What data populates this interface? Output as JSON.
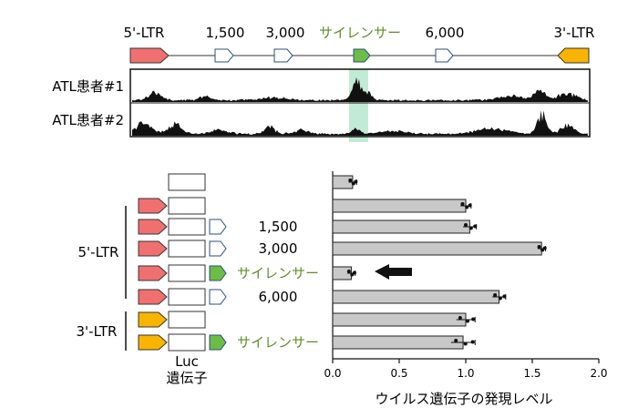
{
  "colors": {
    "ltr5": "#f07070",
    "ltr3": "#f8b400",
    "silencer": "#6cbd45",
    "silencer_text": "#5f8f2a",
    "highlight": "#b7e8cf",
    "bar": "#c8c8c8",
    "track": "#111111"
  },
  "genome_map": {
    "labels": [
      "5'-LTR",
      "1,500",
      "3,000",
      "サイレンサー",
      "6,000",
      "3'-LTR"
    ]
  },
  "tracks": [
    {
      "label": "ATL患者#1"
    },
    {
      "label": "ATL患者#2"
    }
  ],
  "constructs": {
    "group_5ltr": "5'-LTR",
    "group_3ltr": "3'-LTR",
    "rows": [
      {
        "promoter": "none",
        "fragment": "none",
        "label": ""
      },
      {
        "promoter": "5ltr",
        "fragment": "none",
        "label": ""
      },
      {
        "promoter": "5ltr",
        "fragment": "white",
        "label": "1,500"
      },
      {
        "promoter": "5ltr",
        "fragment": "white",
        "label": "3,000"
      },
      {
        "promoter": "5ltr",
        "fragment": "silencer",
        "label": "サイレンサー"
      },
      {
        "promoter": "5ltr",
        "fragment": "white",
        "label": "6,000"
      },
      {
        "promoter": "3ltr",
        "fragment": "none",
        "label": ""
      },
      {
        "promoter": "3ltr",
        "fragment": "silencer",
        "label": "サイレンサー"
      }
    ],
    "luc_label_1": "Luc",
    "luc_label_2": "遺伝子"
  },
  "chart_data": {
    "type": "bar",
    "orientation": "horizontal",
    "values": [
      0.15,
      1.0,
      1.03,
      1.57,
      0.14,
      1.25,
      1.0,
      0.98
    ],
    "errors": [
      0.03,
      0.04,
      0.05,
      0.03,
      0.03,
      0.05,
      0.07,
      0.09
    ],
    "xlim": [
      0.0,
      2.0
    ],
    "xticks": [
      "0.0",
      "0.5",
      "1.0",
      "1.5",
      "2.0"
    ],
    "xlabel": "ウイルス遺伝子の発現レベル",
    "grid": false
  }
}
